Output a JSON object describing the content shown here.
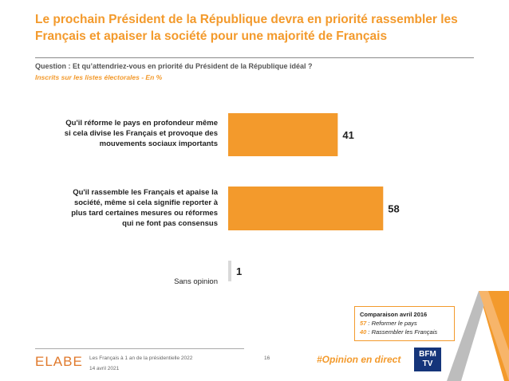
{
  "header": {
    "title": "Le prochain Président de la République devra en priorité rassembler les Français et apaiser la société pour une majorité de Français",
    "question": "Question : Et qu’attendriez-vous en priorité du Président de la République idéal ?",
    "subtitle": "Inscrits sur les listes électorales - En %"
  },
  "chart_data": {
    "type": "bar",
    "orientation": "horizontal",
    "categories": [
      "Qu'il réforme le pays en profondeur même si cela divise les Français et provoque des mouvements sociaux importants",
      "Qu'il rassemble les Français et apaise la société, même si cela signifie reporter à plus tard certaines mesures ou réformes qui ne font pas consensus",
      "Sans opinion"
    ],
    "category_lines": [
      [
        "Qu'il réforme le pays en profondeur même",
        "si cela divise les Français et provoque des",
        "mouvements sociaux importants"
      ],
      [
        "Qu'il rassemble les Français et apaise la",
        "société, même si cela signifie reporter à",
        "plus tard certaines mesures ou réformes",
        "qui ne font pas consensus"
      ],
      [
        "Sans opinion"
      ]
    ],
    "values": [
      41,
      58,
      1
    ],
    "data_labels": [
      "41",
      "58",
      "1"
    ],
    "bar_colors": [
      "#f39a2c",
      "#f39a2c",
      "#d9d9d9"
    ]
  },
  "legend": {
    "title": "Comparaison avril 2016",
    "items": [
      {
        "value": "57",
        "text": " : Reformer le pays"
      },
      {
        "value": "40",
        "text": " : Rassembler les Français"
      }
    ]
  },
  "footer": {
    "logo": "ELABE",
    "study": "Les Français à 1 an de la présidentielle 2022",
    "date": "14 avril 2021",
    "page": "16",
    "hashtag": "#Opinion en direct",
    "partner": "BFM TV"
  },
  "colors": {
    "accent": "#f39a2c",
    "neutral": "#d9d9d9",
    "partner_bg": "#15357a"
  }
}
